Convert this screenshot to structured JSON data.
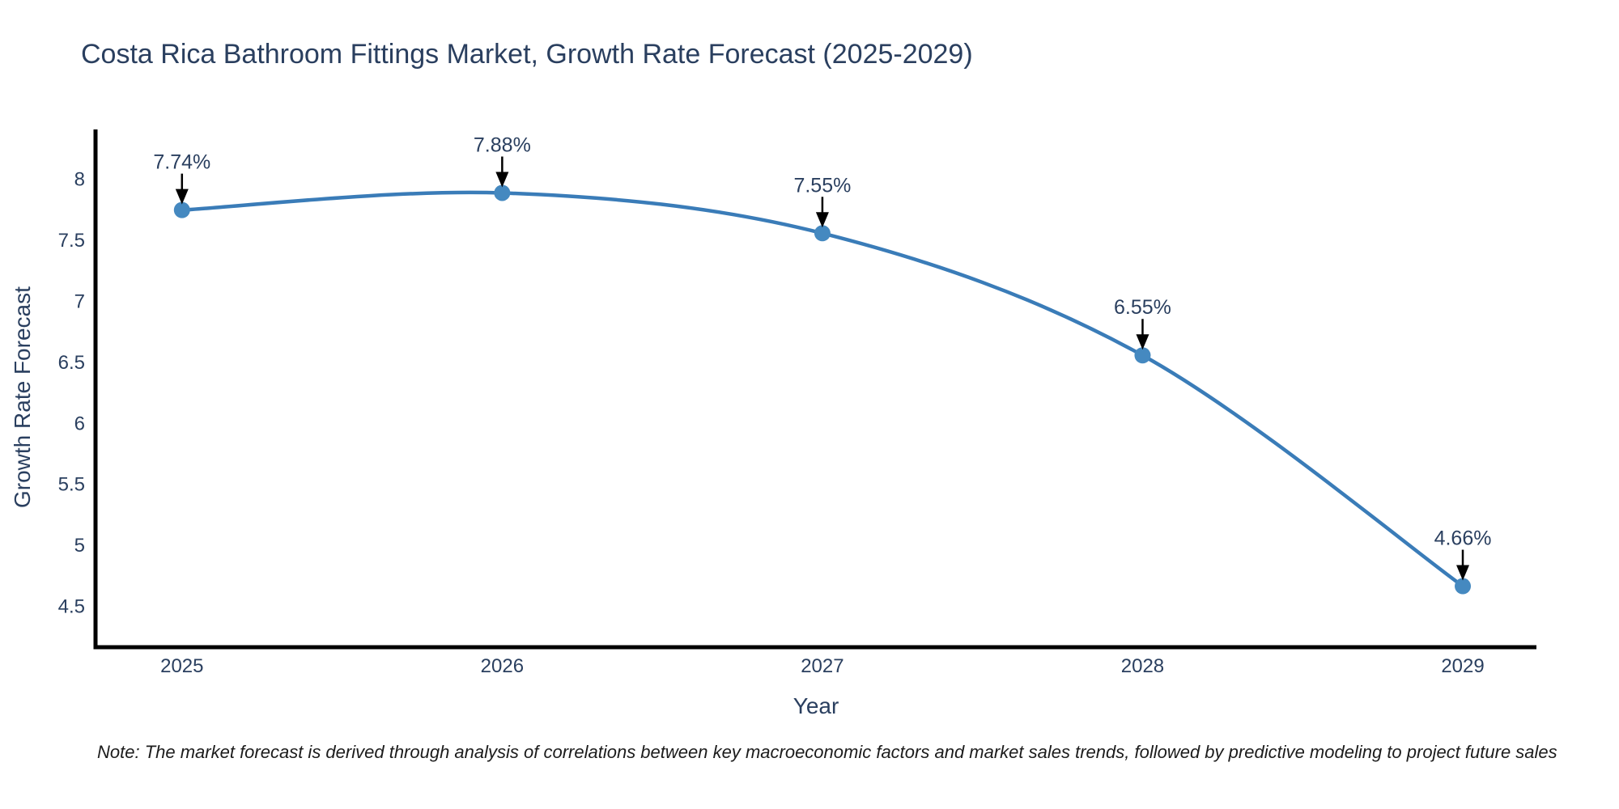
{
  "chart_data": {
    "type": "line",
    "title": "Costa Rica Bathroom Fittings Market, Growth Rate Forecast (2025-2029)",
    "xlabel": "Year",
    "ylabel": "Growth Rate Forecast",
    "categories": [
      "2025",
      "2026",
      "2027",
      "2028",
      "2029"
    ],
    "x": [
      2025,
      2026,
      2027,
      2028,
      2029
    ],
    "values": [
      7.74,
      7.88,
      7.55,
      6.55,
      4.66
    ],
    "point_labels": [
      "7.74%",
      "7.88%",
      "7.55%",
      "6.55%",
      "4.66%"
    ],
    "series": [
      {
        "name": "Growth Rate Forecast",
        "values": [
          7.74,
          7.88,
          7.55,
          6.55,
          4.66
        ]
      }
    ],
    "yticks": [
      "4.5",
      "5",
      "5.5",
      "6",
      "6.5",
      "7",
      "7.5",
      "8"
    ],
    "ylim": [
      4.16,
      8.4
    ],
    "xlim": [
      2024.73,
      2029.23
    ],
    "grid": false,
    "legend_position": "none",
    "line_shape": "spline",
    "note": "Note: The market forecast is derived through analysis of correlations between key macroeconomic factors and market sales trends, followed by predictive modeling to project future sales",
    "colors": {
      "line": "#3a7cb8",
      "marker": "#4589c0",
      "axis": "#000000",
      "text": "#2a3f5f",
      "arrow": "#000000",
      "note_text": "#1c1c1c",
      "background": "#ffffff"
    }
  }
}
